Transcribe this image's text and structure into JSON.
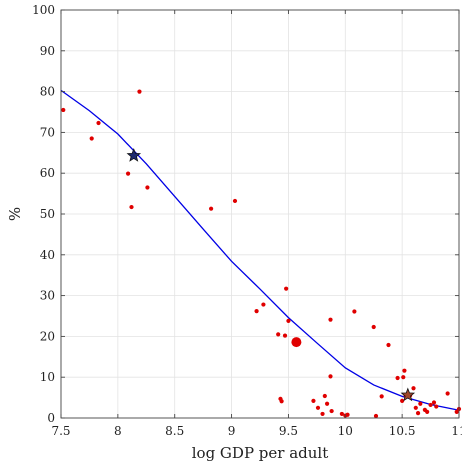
{
  "chart_data": {
    "type": "scatter",
    "xlabel": "log GDP per adult",
    "ylabel": "%",
    "xlim": [
      7.5,
      11.0
    ],
    "ylim": [
      0,
      100
    ],
    "xticks": [
      7.5,
      8,
      8.5,
      9,
      9.5,
      10,
      10.5,
      11
    ],
    "xtick_labels": [
      "7.5",
      "8",
      "8.5",
      "9",
      "9.5",
      "10",
      "10.5",
      "11"
    ],
    "yticks": [
      0,
      10,
      20,
      30,
      40,
      50,
      60,
      70,
      80,
      90,
      100
    ],
    "ytick_labels": [
      "0",
      "10",
      "20",
      "30",
      "40",
      "50",
      "60",
      "70",
      "80",
      "90",
      "100"
    ],
    "grid": true,
    "colors": {
      "points": "#e00000",
      "fit_line": "#0000e6",
      "highlight_star_fill": "#1e2a6e",
      "highlight_star_fill_2": "#a0462a",
      "grid": "#e3e3e3",
      "axes": "#444444"
    },
    "series": [
      {
        "kind": "points",
        "x": [
          7.52,
          7.77,
          7.83,
          8.09,
          8.12,
          8.19,
          8.26,
          8.82,
          9.03,
          9.22,
          9.28,
          9.41,
          9.43,
          9.44,
          9.47,
          9.48,
          9.5,
          9.72,
          9.76,
          9.8,
          9.82,
          9.84,
          9.87,
          9.87,
          9.88,
          9.97,
          10.0,
          10.02,
          10.08,
          10.25,
          10.27,
          10.32,
          10.38,
          10.46,
          10.5,
          10.51,
          10.52,
          10.53,
          10.57,
          10.6,
          10.62,
          10.64,
          10.66,
          10.7,
          10.72,
          10.75,
          10.78,
          10.8,
          10.9,
          10.98,
          11.0
        ],
        "y": [
          75.5,
          68.5,
          72.3,
          59.9,
          51.7,
          80.0,
          56.5,
          51.3,
          53.2,
          26.2,
          27.8,
          20.5,
          4.7,
          4.1,
          20.2,
          31.7,
          23.8,
          4.2,
          2.5,
          1.0,
          5.4,
          3.5,
          24.1,
          10.2,
          1.7,
          1.0,
          0.6,
          0.8,
          26.1,
          22.3,
          0.5,
          5.3,
          17.9,
          9.8,
          4.2,
          10.0,
          11.6,
          5.5,
          5.5,
          7.3,
          2.5,
          1.2,
          3.5,
          2.0,
          1.5,
          3.2,
          3.8,
          2.8,
          6.0,
          1.5,
          2.2
        ]
      },
      {
        "kind": "fit",
        "x": [
          7.5,
          7.75,
          8.0,
          8.25,
          8.5,
          8.75,
          9.0,
          9.25,
          9.5,
          9.75,
          10.0,
          10.25,
          10.5,
          10.75,
          11.0
        ],
        "y": [
          80.3,
          75.3,
          69.6,
          62.3,
          54.3,
          46.3,
          38.4,
          31.6,
          24.6,
          18.4,
          12.3,
          8.1,
          5.3,
          3.3,
          1.9
        ]
      },
      {
        "kind": "highlight-point",
        "x": [
          9.57
        ],
        "y": [
          18.6
        ]
      },
      {
        "kind": "highlight-star",
        "x": [
          8.14,
          10.55
        ],
        "y": [
          64.3,
          5.6
        ]
      }
    ]
  }
}
